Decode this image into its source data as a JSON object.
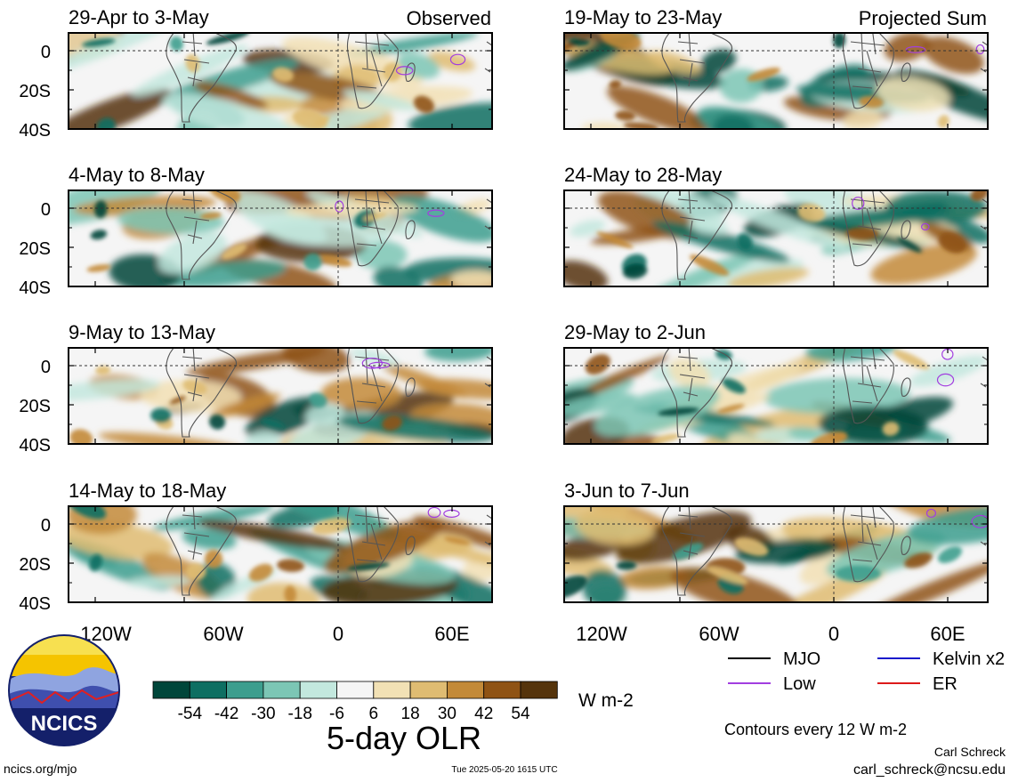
{
  "header": {
    "left_tag": "Observed",
    "right_tag": "Projected Sum"
  },
  "panels_left": [
    {
      "title": "29-Apr to 3-May"
    },
    {
      "title": "4-May to 8-May"
    },
    {
      "title": "9-May to 13-May"
    },
    {
      "title": "14-May to 18-May"
    }
  ],
  "panels_right": [
    {
      "title": "19-May to 23-May"
    },
    {
      "title": "24-May to 28-May"
    },
    {
      "title": "29-May to 2-Jun"
    },
    {
      "title": "3-Jun to 7-Jun"
    }
  ],
  "axes": {
    "lat_ticks": [
      "0",
      "20S",
      "40S"
    ],
    "lon_ticks": [
      "120W",
      "60W",
      "0",
      "60E"
    ]
  },
  "legend": {
    "mjo": "MJO",
    "kelvin": "Kelvin x2",
    "low": "Low",
    "er": "ER",
    "colors": {
      "mjo": "#000000",
      "kelvin": "#1a1acc",
      "low": "#a23ee0",
      "er": "#dd1a1a"
    }
  },
  "colorbar": {
    "labels": [
      "-54",
      "-42",
      "-30",
      "-18",
      "-6",
      "6",
      "18",
      "30",
      "42",
      "54"
    ],
    "units": "W m-2",
    "title": "5-day OLR",
    "colors": [
      "#00463a",
      "#0e6f62",
      "#3d9e8e",
      "#7cc6b5",
      "#c3e8de",
      "#f5f5f5",
      "#f2e1b5",
      "#dfbc72",
      "#c38a38",
      "#8f5314",
      "#55340c"
    ]
  },
  "logo": {
    "text": "NCICS"
  },
  "footer": {
    "contours_note": "Contours every 12 W m-2",
    "url": "ncics.org/mjo",
    "timestamp": "Tue 2025-05-20 1615 UTC",
    "author": "Carl Schreck",
    "email": "carl_schreck@ncsu.edu"
  }
}
